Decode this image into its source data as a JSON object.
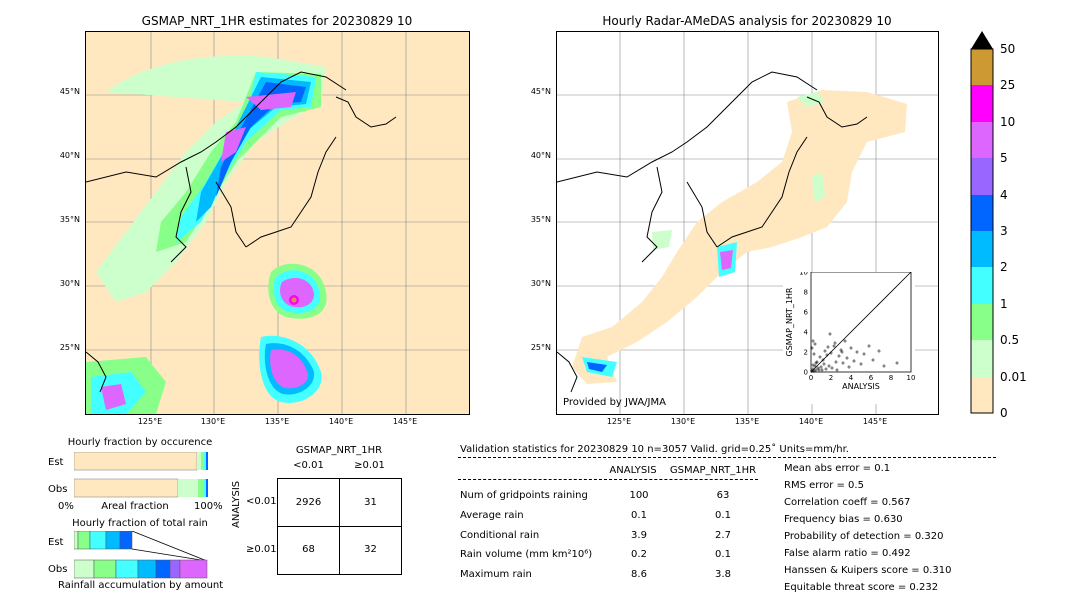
{
  "left_map": {
    "title": "GSMAP_NRT_1HR estimates for 20230829 10",
    "lat_labels": [
      "45°N",
      "40°N",
      "35°N",
      "30°N",
      "25°N"
    ],
    "lon_labels": [
      "125°E",
      "130°E",
      "135°E",
      "140°E",
      "145°E"
    ]
  },
  "right_map": {
    "title": "Hourly Radar-AMeDAS analysis for 20230829 10",
    "lat_labels": [
      "45°N",
      "40°N",
      "35°N",
      "30°N",
      "25°N"
    ],
    "lon_labels": [
      "125°E",
      "130°E",
      "135°E",
      "140°E",
      "145°E"
    ],
    "credit": "Provided by JWA/JMA"
  },
  "colorbar": {
    "labels": [
      "50",
      "25",
      "10",
      "5",
      "4",
      "3",
      "2",
      "1",
      "0.5",
      "0.01",
      "0"
    ],
    "colors": [
      "#cc9933",
      "#ff00ff",
      "#dd66ff",
      "#9966ff",
      "#0066ff",
      "#00bbff",
      "#44ffff",
      "#88ff88",
      "#ccffcc",
      "#ffe8c0"
    ]
  },
  "occurrence": {
    "title": "Hourly fraction by occurence",
    "row_est": "Est",
    "row_obs": "Obs",
    "axis_left": "0%",
    "axis_mid": "Areal fraction",
    "axis_right": "100%"
  },
  "total_rain": {
    "title": "Hourly fraction of total rain",
    "row_est": "Est",
    "row_obs": "Obs",
    "footer": "Rainfall accumulation by amount"
  },
  "contingency": {
    "title": "GSMAP_NRT_1HR",
    "col1": "<0.01",
    "col2": "≥0.01",
    "row_axis": "ANALYSIS",
    "row1": "<0.01",
    "row2": "≥0.01",
    "cells": [
      "2926",
      "31",
      "68",
      "32"
    ]
  },
  "validation": {
    "header": "Validation statistics for 20230829 10  n=3057 Valid. grid=0.25˚ Units=mm/hr.",
    "col_analysis": "ANALYSIS",
    "col_gsmap": "GSMAP_NRT_1HR",
    "rows": [
      {
        "label": "Num of gridpoints raining",
        "a": "100",
        "g": "63"
      },
      {
        "label": "Average rain",
        "a": "0.1",
        "g": "0.1"
      },
      {
        "label": "Conditional rain",
        "a": "3.9",
        "g": "2.7"
      },
      {
        "label": "Rain volume (mm km²10⁶)",
        "a": "0.2",
        "g": "0.1"
      },
      {
        "label": "Maximum rain",
        "a": "8.6",
        "g": "3.8"
      }
    ],
    "scores": [
      "Mean abs error =    0.1",
      "RMS error =    0.5",
      "Correlation coeff =  0.567",
      "Frequency bias =  0.630",
      "Probability of detection =  0.320",
      "False alarm ratio =  0.492",
      "Hanssen & Kuipers score =  0.310",
      "Equitable threat score =  0.232"
    ]
  },
  "chart_data": {
    "type": "scatter",
    "xlabel": "ANALYSIS",
    "ylabel": "GSMAP_NRT_1HR",
    "xlim": [
      0,
      10
    ],
    "ylim": [
      0,
      10
    ],
    "ticks": [
      "0",
      "2",
      "4",
      "6",
      "8",
      "10"
    ],
    "points": [
      [
        0.2,
        0.3
      ],
      [
        0.3,
        0.1
      ],
      [
        0.4,
        0.6
      ],
      [
        0.5,
        0.2
      ],
      [
        0.6,
        1.0
      ],
      [
        0.7,
        0.4
      ],
      [
        0.8,
        0.2
      ],
      [
        0.9,
        1.5
      ],
      [
        1.0,
        0.5
      ],
      [
        1.1,
        0.2
      ],
      [
        1.2,
        1.2
      ],
      [
        1.3,
        0.8
      ],
      [
        1.4,
        2.1
      ],
      [
        1.5,
        0.3
      ],
      [
        1.6,
        1.7
      ],
      [
        1.8,
        0.6
      ],
      [
        2.0,
        1.9
      ],
      [
        2.1,
        0.4
      ],
      [
        2.3,
        2.6
      ],
      [
        2.5,
        1.0
      ],
      [
        2.6,
        0.2
      ],
      [
        2.8,
        1.6
      ],
      [
        3.0,
        2.2
      ],
      [
        3.2,
        0.9
      ],
      [
        3.4,
        3.1
      ],
      [
        3.6,
        1.4
      ],
      [
        3.8,
        0.5
      ],
      [
        4.0,
        2.4
      ],
      [
        4.3,
        1.1
      ],
      [
        4.6,
        2.0
      ],
      [
        5.0,
        0.8
      ],
      [
        5.3,
        1.8
      ],
      [
        5.8,
        2.6
      ],
      [
        6.2,
        1.2
      ],
      [
        6.8,
        2.1
      ],
      [
        7.3,
        0.6
      ],
      [
        8.6,
        0.9
      ],
      [
        0.1,
        2.4
      ],
      [
        0.2,
        3.1
      ],
      [
        0.3,
        1.8
      ],
      [
        0.4,
        2.8
      ],
      [
        0.5,
        0.9
      ],
      [
        0.1,
        0.1
      ],
      [
        0.2,
        0.7
      ],
      [
        1.9,
        3.8
      ],
      [
        2.4,
        2.9
      ],
      [
        3.1,
        2.0
      ],
      [
        1.7,
        2.5
      ]
    ]
  }
}
